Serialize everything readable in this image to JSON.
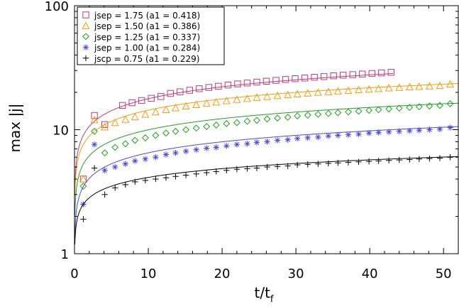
{
  "chart_data": {
    "type": "scatter",
    "title": "",
    "xlabel": "t/t",
    "xlabel_sub": "f",
    "ylabel": "max |j|",
    "xlim": [
      0,
      52
    ],
    "ylim": [
      1,
      100
    ],
    "yscale": "log",
    "x_ticks": [
      0,
      10,
      20,
      30,
      40,
      50
    ],
    "x_tick_labels": [
      "0",
      "10",
      "20",
      "30",
      "40",
      "50"
    ],
    "y_ticks": [
      1,
      10,
      100
    ],
    "y_tick_labels": [
      "1",
      "10",
      "100"
    ],
    "legend_position": "top-left",
    "series": [
      {
        "name": "jsep = 1.75 (a1 = 0.418)",
        "jsep": "1.75",
        "a1": "0.418",
        "marker": "square",
        "color": "#c03a76",
        "x": [
          1.2,
          2.7,
          4.1,
          6.5,
          7.8,
          9.1,
          10.4,
          11.7,
          13.0,
          14.3,
          15.6,
          16.9,
          18.2,
          19.5,
          20.8,
          22.1,
          23.4,
          24.7,
          26.0,
          27.3,
          28.6,
          29.9,
          31.2,
          32.5,
          33.8,
          35.1,
          36.4,
          37.7,
          39.0,
          40.3,
          41.6,
          42.9
        ],
        "y": [
          4.0,
          13.0,
          11.0,
          15.7,
          16.5,
          17.2,
          17.9,
          18.5,
          19.6,
          20.2,
          20.8,
          21.4,
          21.9,
          22.4,
          22.9,
          23.4,
          23.8,
          24.2,
          24.6,
          25.0,
          25.4,
          25.8,
          26.1,
          26.5,
          26.8,
          27.2,
          27.5,
          27.8,
          28.1,
          28.4,
          28.7,
          29.0
        ],
        "fit": {
          "A": 8.5,
          "p": 0.32
        }
      },
      {
        "name": "jsep = 1.50 (a1 = 0.386)",
        "jsep": "1.50",
        "a1": "0.386",
        "marker": "triangle",
        "color": "#f39c12",
        "x": [
          1.2,
          2.7,
          4.1,
          5.5,
          6.9,
          8.2,
          9.6,
          11.0,
          12.4,
          13.7,
          15.1,
          16.5,
          17.9,
          19.2,
          20.6,
          22.0,
          23.4,
          24.7,
          26.1,
          27.5,
          28.9,
          30.2,
          31.6,
          33.0,
          34.4,
          35.7,
          37.1,
          38.5,
          39.9,
          41.2,
          42.6,
          44.0,
          45.4,
          46.7,
          48.1,
          49.5,
          50.9
        ],
        "y": [
          4.0,
          12.0,
          10.5,
          11.4,
          12.1,
          12.7,
          13.3,
          13.9,
          14.5,
          15.0,
          15.5,
          15.9,
          16.3,
          16.7,
          17.1,
          17.5,
          17.8,
          18.2,
          18.5,
          18.8,
          19.1,
          19.4,
          19.7,
          20.0,
          20.2,
          20.5,
          20.7,
          21.0,
          21.2,
          21.4,
          21.7,
          21.9,
          22.1,
          22.3,
          22.5,
          22.7,
          23.3
        ],
        "fit": {
          "A": 7.2,
          "p": 0.3
        }
      },
      {
        "name": "jsep = 1.25 (a1 = 0.337)",
        "jsep": "1.25",
        "a1": "0.337",
        "marker": "diamond",
        "color": "#1fa01f",
        "x": [
          1.2,
          2.7,
          4.1,
          5.5,
          6.9,
          8.2,
          9.6,
          11.0,
          12.4,
          13.7,
          15.1,
          16.5,
          17.9,
          19.2,
          20.6,
          22.0,
          23.4,
          24.7,
          26.1,
          27.5,
          28.9,
          30.2,
          31.6,
          33.0,
          34.4,
          35.7,
          37.1,
          38.5,
          39.9,
          41.2,
          42.6,
          44.0,
          45.4,
          46.7,
          48.1,
          49.5,
          50.9
        ],
        "y": [
          3.5,
          9.7,
          6.5,
          7.2,
          7.7,
          8.2,
          8.6,
          9.0,
          9.4,
          9.7,
          10.0,
          10.3,
          10.6,
          10.9,
          11.2,
          11.4,
          11.7,
          11.9,
          12.2,
          12.4,
          12.6,
          12.9,
          13.1,
          13.3,
          13.5,
          13.7,
          13.9,
          14.1,
          14.3,
          14.5,
          14.7,
          14.9,
          15.1,
          15.3,
          15.5,
          15.7,
          16.2
        ],
        "fit": {
          "A": 5.0,
          "p": 0.3
        }
      },
      {
        "name": "jsep = 1.00 (a1 = 0.284)",
        "jsep": "1.00",
        "a1": "0.284",
        "marker": "asterisk",
        "color": "#4a4ad8",
        "x": [
          1.2,
          2.7,
          4.1,
          5.5,
          6.9,
          8.2,
          9.6,
          11.0,
          12.4,
          13.7,
          15.1,
          16.5,
          17.9,
          19.2,
          20.6,
          22.0,
          23.4,
          24.7,
          26.1,
          27.5,
          28.9,
          30.2,
          31.6,
          33.0,
          34.4,
          35.7,
          37.1,
          38.5,
          39.9,
          41.2,
          42.6,
          44.0,
          45.4,
          46.7,
          48.1,
          49.5,
          50.9
        ],
        "y": [
          2.5,
          7.6,
          4.7,
          5.0,
          5.3,
          5.6,
          5.8,
          6.0,
          6.3,
          6.5,
          6.7,
          6.9,
          7.1,
          7.2,
          7.4,
          7.6,
          7.7,
          7.9,
          8.0,
          8.2,
          8.3,
          8.5,
          8.6,
          8.7,
          8.9,
          9.0,
          9.1,
          9.2,
          9.4,
          9.5,
          9.6,
          9.7,
          9.8,
          9.9,
          10.0,
          10.1,
          10.4
        ],
        "fit": {
          "A": 3.3,
          "p": 0.295
        }
      },
      {
        "name": "jscp = 0.75 (a1 = 0.229)",
        "jsep": "0.75",
        "a1": "0.229",
        "marker": "plus",
        "color": "#000000",
        "x": [
          1.2,
          2.7,
          4.1,
          5.5,
          6.9,
          8.2,
          9.6,
          11.0,
          12.4,
          13.7,
          15.1,
          16.5,
          17.9,
          19.2,
          20.6,
          22.0,
          23.4,
          24.7,
          26.1,
          27.5,
          28.9,
          30.2,
          31.6,
          33.0,
          34.4,
          35.7,
          37.1,
          38.5,
          39.9,
          41.2,
          42.6,
          44.0,
          45.4,
          46.7,
          48.1,
          49.5,
          50.9
        ],
        "y": [
          1.9,
          4.9,
          3.0,
          3.4,
          3.6,
          3.8,
          3.9,
          4.0,
          4.1,
          4.2,
          4.3,
          4.4,
          4.5,
          4.6,
          4.7,
          4.8,
          4.85,
          4.9,
          5.0,
          5.05,
          5.1,
          5.2,
          5.25,
          5.3,
          5.35,
          5.4,
          5.45,
          5.5,
          5.55,
          5.6,
          5.65,
          5.7,
          5.75,
          5.8,
          5.85,
          5.9,
          6.0
        ],
        "fit": {
          "A": 2.4,
          "p": 0.235
        }
      }
    ]
  }
}
